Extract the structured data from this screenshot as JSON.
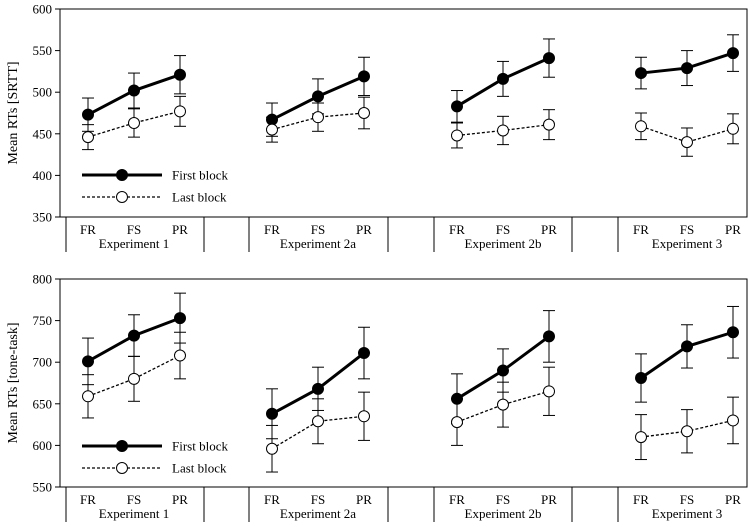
{
  "chart_data": [
    {
      "type": "line",
      "ylabel": "Mean RTs [SRTT]",
      "ylim": [
        350,
        600
      ],
      "yticks": [
        350,
        400,
        450,
        500,
        550,
        600
      ],
      "categories": [
        "FR",
        "FS",
        "PR"
      ],
      "groups": [
        "Experiment 1",
        "Experiment 2a",
        "Experiment 2b",
        "Experiment 3"
      ],
      "legend": {
        "placement": "bottom-left"
      },
      "series": [
        {
          "name": "First block",
          "style": "solid-filled",
          "values": [
            [
              473,
              502,
              521
            ],
            [
              467,
              495,
              519
            ],
            [
              483,
              516,
              541
            ],
            [
              523,
              529,
              547
            ]
          ],
          "errors": [
            [
              20,
              21,
              23
            ],
            [
              20,
              21,
              23
            ],
            [
              19,
              21,
              23
            ],
            [
              19,
              21,
              22
            ]
          ]
        },
        {
          "name": "Last block",
          "style": "dashed-open",
          "values": [
            [
              446,
              463,
              477
            ],
            [
              455,
              470,
              475
            ],
            [
              448,
              454,
              461
            ],
            [
              459,
              440,
              456
            ]
          ],
          "errors": [
            [
              15,
              17,
              18
            ],
            [
              15,
              17,
              19
            ],
            [
              15,
              17,
              18
            ],
            [
              16,
              17,
              18
            ]
          ]
        }
      ]
    },
    {
      "type": "line",
      "ylabel": "Mean RTs [tone-task]",
      "ylim": [
        550,
        800
      ],
      "yticks": [
        550,
        600,
        650,
        700,
        750,
        800
      ],
      "categories": [
        "FR",
        "FS",
        "PR"
      ],
      "groups": [
        "Experiment 1",
        "Experiment 2a",
        "Experiment 2b",
        "Experiment 3"
      ],
      "legend": {
        "placement": "bottom-left"
      },
      "series": [
        {
          "name": "First block",
          "style": "solid-filled",
          "values": [
            [
              701,
              732,
              753
            ],
            [
              638,
              668,
              711
            ],
            [
              656,
              690,
              731
            ],
            [
              681,
              719,
              736
            ]
          ],
          "errors": [
            [
              28,
              25,
              30
            ],
            [
              30,
              26,
              31
            ],
            [
              30,
              26,
              31
            ],
            [
              29,
              26,
              31
            ]
          ]
        },
        {
          "name": "Last block",
          "style": "dashed-open",
          "values": [
            [
              659,
              680,
              708
            ],
            [
              596,
              629,
              635
            ],
            [
              628,
              649,
              665
            ],
            [
              610,
              617,
              630
            ]
          ],
          "errors": [
            [
              26,
              27,
              28
            ],
            [
              28,
              27,
              29
            ],
            [
              28,
              27,
              29
            ],
            [
              27,
              26,
              28
            ]
          ]
        }
      ]
    }
  ]
}
